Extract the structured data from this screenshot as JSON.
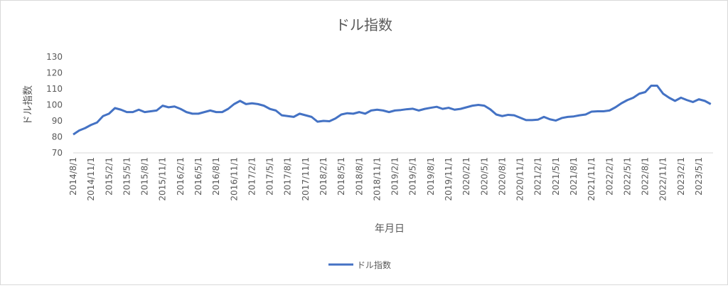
{
  "chart_data": {
    "type": "line",
    "title": "ドル指数",
    "x_label": "年月日",
    "y_label": "ドル指数",
    "categories": [
      "2014/8/1",
      null,
      null,
      "2014/11/1",
      null,
      null,
      "2015/2/1",
      null,
      null,
      "2015/5/1",
      null,
      null,
      "2015/8/1",
      null,
      null,
      "2015/11/1",
      null,
      null,
      "2016/2/1",
      null,
      null,
      "2016/5/1",
      null,
      null,
      "2016/8/1",
      null,
      null,
      "2016/11/1",
      null,
      null,
      "2017/2/1",
      null,
      null,
      "2017/5/1",
      null,
      null,
      "2017/8/1",
      null,
      null,
      "2017/11/1",
      null,
      null,
      "2018/2/1",
      null,
      null,
      "2018/5/1",
      null,
      null,
      "2018/8/1",
      null,
      null,
      "2018/11/1",
      null,
      null,
      "2019/2/1",
      null,
      null,
      "2019/5/1",
      null,
      null,
      "2019/8/1",
      null,
      null,
      "2019/11/1",
      null,
      null,
      "2020/2/1",
      null,
      null,
      "2020/5/1",
      null,
      null,
      "2020/8/1",
      null,
      null,
      "2020/11/1",
      null,
      null,
      "2021/2/1",
      null,
      null,
      "2021/5/1",
      null,
      null,
      "2021/8/1",
      null,
      null,
      "2021/11/1",
      null,
      null,
      "2022/2/1",
      null,
      null,
      "2022/5/1",
      null,
      null,
      "2022/8/1",
      null,
      null,
      "2022/11/1",
      null,
      null,
      "2023/2/1",
      null,
      null,
      "2023/5/1",
      null,
      null
    ],
    "series": [
      {
        "name": "ドル指数",
        "color": "#4472c4",
        "values": [
          81.5,
          84,
          85.5,
          87.5,
          89,
          93,
          94.5,
          98,
          97,
          95.5,
          95.5,
          97,
          95.5,
          96,
          96.5,
          99.5,
          98.5,
          99,
          97.5,
          95.5,
          94.5,
          94.5,
          95.5,
          96.5,
          95.5,
          95.5,
          97.5,
          100.5,
          102.5,
          100.5,
          101,
          100.5,
          99.5,
          97.5,
          96.5,
          93.5,
          93,
          92.5,
          94.5,
          93.5,
          92.5,
          89.5,
          90,
          89.8,
          91.5,
          94,
          94.8,
          94.5,
          95.5,
          94.5,
          96.5,
          97,
          96.5,
          95.5,
          96.5,
          96.8,
          97.3,
          97.6,
          96.5,
          97.5,
          98.2,
          98.8,
          97.5,
          98.2,
          97,
          97.5,
          98.5,
          99.5,
          100,
          99.5,
          97.2,
          94,
          93,
          93.8,
          93.5,
          92,
          90.5,
          90.5,
          90.8,
          92.5,
          91,
          90.2,
          91.8,
          92.5,
          92.8,
          93.5,
          94,
          95.8,
          96,
          96,
          96.5,
          98.5,
          101,
          103,
          104.5,
          107,
          108,
          112,
          112,
          107,
          104.5,
          102.5,
          104.5,
          103,
          101.8,
          103.5,
          102.5,
          100.5
        ]
      }
    ],
    "ylim": [
      70,
      130
    ],
    "yticks": [
      70,
      80,
      90,
      100,
      110,
      120,
      130
    ],
    "grid": false,
    "legend": "bottom"
  }
}
